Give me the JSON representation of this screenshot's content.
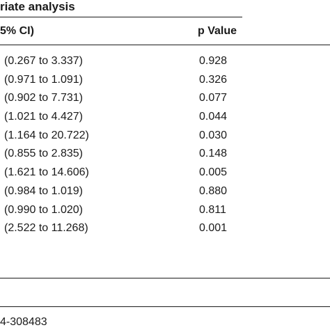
{
  "table": {
    "title": "riate analysis",
    "headers": {
      "ci": "5% CI)",
      "p": "p Value"
    },
    "rows": [
      {
        "ci": "(0.267 to 3.337)",
        "p": "0.928"
      },
      {
        "ci": "(0.971 to 1.091)",
        "p": "0.326"
      },
      {
        "ci": "(0.902 to 7.731)",
        "p": "0.077"
      },
      {
        "ci": "(1.021 to 4.427)",
        "p": "0.044"
      },
      {
        "ci": "(1.164 to 20.722)",
        "p": "0.030"
      },
      {
        "ci": "(0.855 to 2.835)",
        "p": "0.148"
      },
      {
        "ci": "(1.621 to 14.606)",
        "p": "0.005"
      },
      {
        "ci": "(0.984 to 1.019)",
        "p": "0.880"
      },
      {
        "ci": "(0.990 to 1.020)",
        "p": "0.811"
      },
      {
        "ci": "(2.522 to 11.268)",
        "p": "0.001"
      }
    ]
  },
  "footer": {
    "text": "4-308483"
  }
}
